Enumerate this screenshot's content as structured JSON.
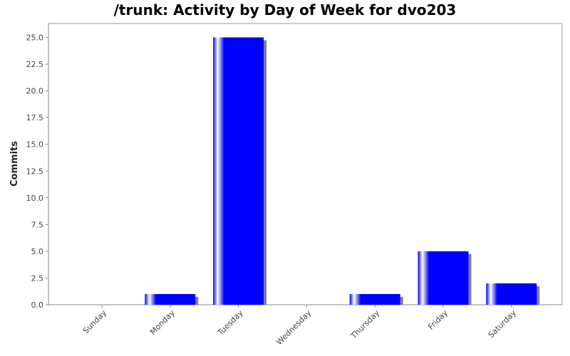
{
  "chart_data": {
    "type": "bar",
    "title": "/trunk: Activity by Day of Week for dvo203",
    "xlabel": "",
    "ylabel": "Commits",
    "categories": [
      "Sunday",
      "Monday",
      "Tuesday",
      "Wednesday",
      "Thursday",
      "Friday",
      "Saturday"
    ],
    "values": [
      0,
      1,
      25,
      0,
      1,
      5,
      2
    ],
    "ylim": [
      0,
      26.3
    ],
    "yticks": [
      "0.0",
      "2.5",
      "5.0",
      "7.5",
      "10.0",
      "12.5",
      "15.0",
      "17.5",
      "20.0",
      "22.5",
      "25.0"
    ],
    "grid": false,
    "legend": "none",
    "colors": {
      "bar": "#0000ff",
      "bar_highlight": "#ffffff",
      "shadow": "#808080"
    }
  }
}
